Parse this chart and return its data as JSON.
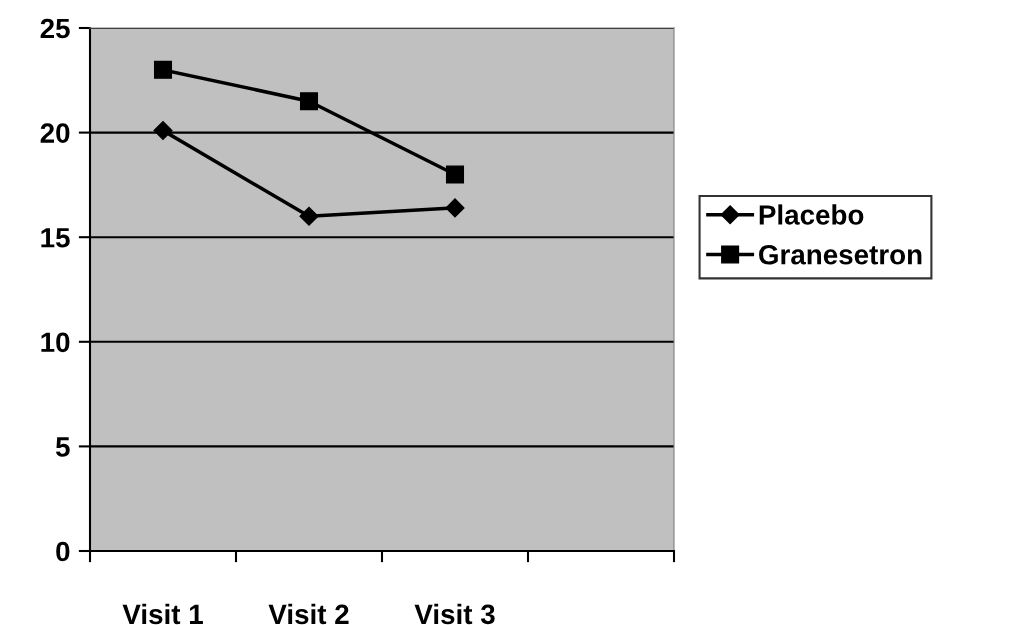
{
  "chart_data": {
    "type": "line",
    "categories": [
      "Visit 1",
      "Visit 2",
      "Visit 3",
      null
    ],
    "series": [
      {
        "name": "Placebo",
        "color": "#000000",
        "marker": "diamond",
        "values": [
          20.1,
          16.0,
          16.4,
          null
        ]
      },
      {
        "name": "Granesetron",
        "color": "#000000",
        "marker": "square",
        "values": [
          23.0,
          21.5,
          18.0,
          null
        ]
      }
    ],
    "ylim": [
      0,
      25
    ],
    "yticks": [
      0,
      5,
      10,
      15,
      20,
      25
    ],
    "grid": "y",
    "legend": "right",
    "line_style": "solid"
  }
}
